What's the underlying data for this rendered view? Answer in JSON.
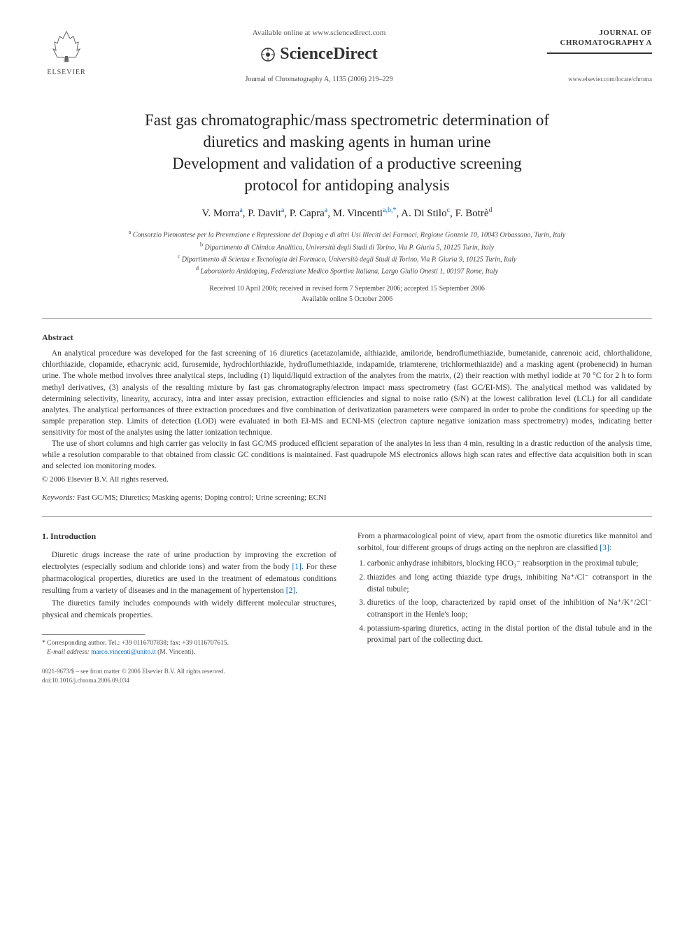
{
  "header": {
    "elsevier_label": "ELSEVIER",
    "available_online": "Available online at www.sciencedirect.com",
    "sciencedirect_label": "ScienceDirect",
    "journal_citation": "Journal of Chromatography A, 1135 (2006) 219–229",
    "journal_name_line1": "JOURNAL OF",
    "journal_name_line2": "CHROMATOGRAPHY A",
    "journal_url": "www.elsevier.com/locate/chroma"
  },
  "title": {
    "line1": "Fast gas chromatographic/mass spectrometric determination of",
    "line2": "diuretics and masking agents in human urine",
    "line3": "Development and validation of a productive screening",
    "line4": "protocol for antidoping analysis"
  },
  "authors_html": "V. Morra<sup>a</sup>, P. Davit<sup>a</sup>, P. Capra<sup>a</sup>, M. Vincenti<sup>a,b,*</sup>, A. Di Stilo<sup>c</sup>, F. Botrè<sup>d</sup>",
  "affiliations": {
    "a": "Consorzio Piemontese per la Prevenzione e Repressione del Doping e di altri Usi Illeciti dei Farmaci, Regione Gonzole 10, 10043 Orbassano, Turin, Italy",
    "b": "Dipartimento di Chimica Analitica, Università degli Studi di Torino, Via P. Giuria 5, 10125 Turin, Italy",
    "c": "Dipartimento di Scienza e Tecnologia del Farmaco, Università degli Studi di Torino, Via P. Giuria 9, 10125 Turin, Italy",
    "d": "Laboratorio Antidoping, Federazione Medico Sportiva Italiana, Largo Giulio Onesti 1, 00197 Rome, Italy"
  },
  "dates": {
    "line1": "Received 10 April 2006; received in revised form 7 September 2006; accepted 15 September 2006",
    "line2": "Available online 5 October 2006"
  },
  "abstract": {
    "heading": "Abstract",
    "p1": "An analytical procedure was developed for the fast screening of 16 diuretics (acetazolamide, althiazide, amiloride, bendroflumethiazide, bumetanide, canrenoic acid, chlorthalidone, chlorthiazide, clopamide, ethacrynic acid, furosemide, hydrochlorthiazide, hydroflumethiazide, indapamide, triamterene, trichlormethiazide) and a masking agent (probenecid) in human urine. The whole method involves three analytical steps, including (1) liquid/liquid extraction of the analytes from the matrix, (2) their reaction with methyl iodide at 70 °C for 2 h to form methyl derivatives, (3) analysis of the resulting mixture by fast gas chromatography/electron impact mass spectrometry (fast GC/EI-MS). The analytical method was validated by determining selectivity, linearity, accuracy, intra and inter assay precision, extraction efficiencies and signal to noise ratio (S/N) at the lowest calibration level (LCL) for all candidate analytes. The analytical performances of three extraction procedures and five combination of derivatization parameters were compared in order to probe the conditions for speeding up the sample preparation step. Limits of detection (LOD) were evaluated in both EI-MS and ECNI-MS (electron capture negative ionization mass spectrometry) modes, indicating better sensitivity for most of the analytes using the latter ionization technique.",
    "p2": "The use of short columns and high carrier gas velocity in fast GC/MS produced efficient separation of the analytes in less than 4 min, resulting in a drastic reduction of the analysis time, while a resolution comparable to that obtained from classic GC conditions is maintained. Fast quadrupole MS electronics allows high scan rates and effective data acquisition both in scan and selected ion monitoring modes.",
    "copyright": "© 2006 Elsevier B.V. All rights reserved."
  },
  "keywords": {
    "label": "Keywords:",
    "text": "Fast GC/MS; Diuretics; Masking agents; Doping control; Urine screening; ECNI"
  },
  "intro": {
    "heading": "1. Introduction",
    "p1_before_ref": "Diuretic drugs increase the rate of urine production by improving the excretion of electrolytes (especially sodium and chloride ions) and water from the body ",
    "ref1": "[1]",
    "p1_mid": ". For these pharmacological properties, diuretics are used in the treatment of edematous conditions resulting from a variety of diseases and in the management of hypertension ",
    "ref2": "[2]",
    "p1_end": ".",
    "p2_before": "The diuretics family includes compounds with widely different molecular structures, physical and chemicals properties.",
    "p3_before": "From a pharmacological point of view, apart from the osmotic diuretics like mannitol and sorbitol, four different groups of drugs acting on the nephron are classified ",
    "ref3": "[3]",
    "p3_end": ":",
    "list": {
      "item1": "carbonic anhydrase inhibitors, blocking HCO₃⁻ reabsorption in the proximal tubule;",
      "item2": "thiazides and long acting thiazide type drugs, inhibiting Na⁺/Cl⁻ cotransport in the distal tubule;",
      "item3": "diuretics of the loop, characterized by rapid onset of the inhibition of Na⁺/K⁺/2Cl⁻ cotransport in the Henle's loop;",
      "item4": "potassium-sparing diuretics, acting in the distal portion of the distal tubule and in the proximal part of the collecting duct."
    }
  },
  "footnotes": {
    "corresponding": "* Corresponding author. Tel.: +39 0116707838; fax: +39 0116707615.",
    "email_label": "E-mail address:",
    "email": "marco.vincenti@unito.it",
    "email_who": "(M. Vincenti)."
  },
  "bottom": {
    "issn_line": "0021-9673/$ – see front matter © 2006 Elsevier B.V. All rights reserved.",
    "doi": "doi:10.1016/j.chroma.2006.09.034"
  },
  "colors": {
    "link": "#0066cc",
    "text": "#333333",
    "rule": "#888888"
  }
}
